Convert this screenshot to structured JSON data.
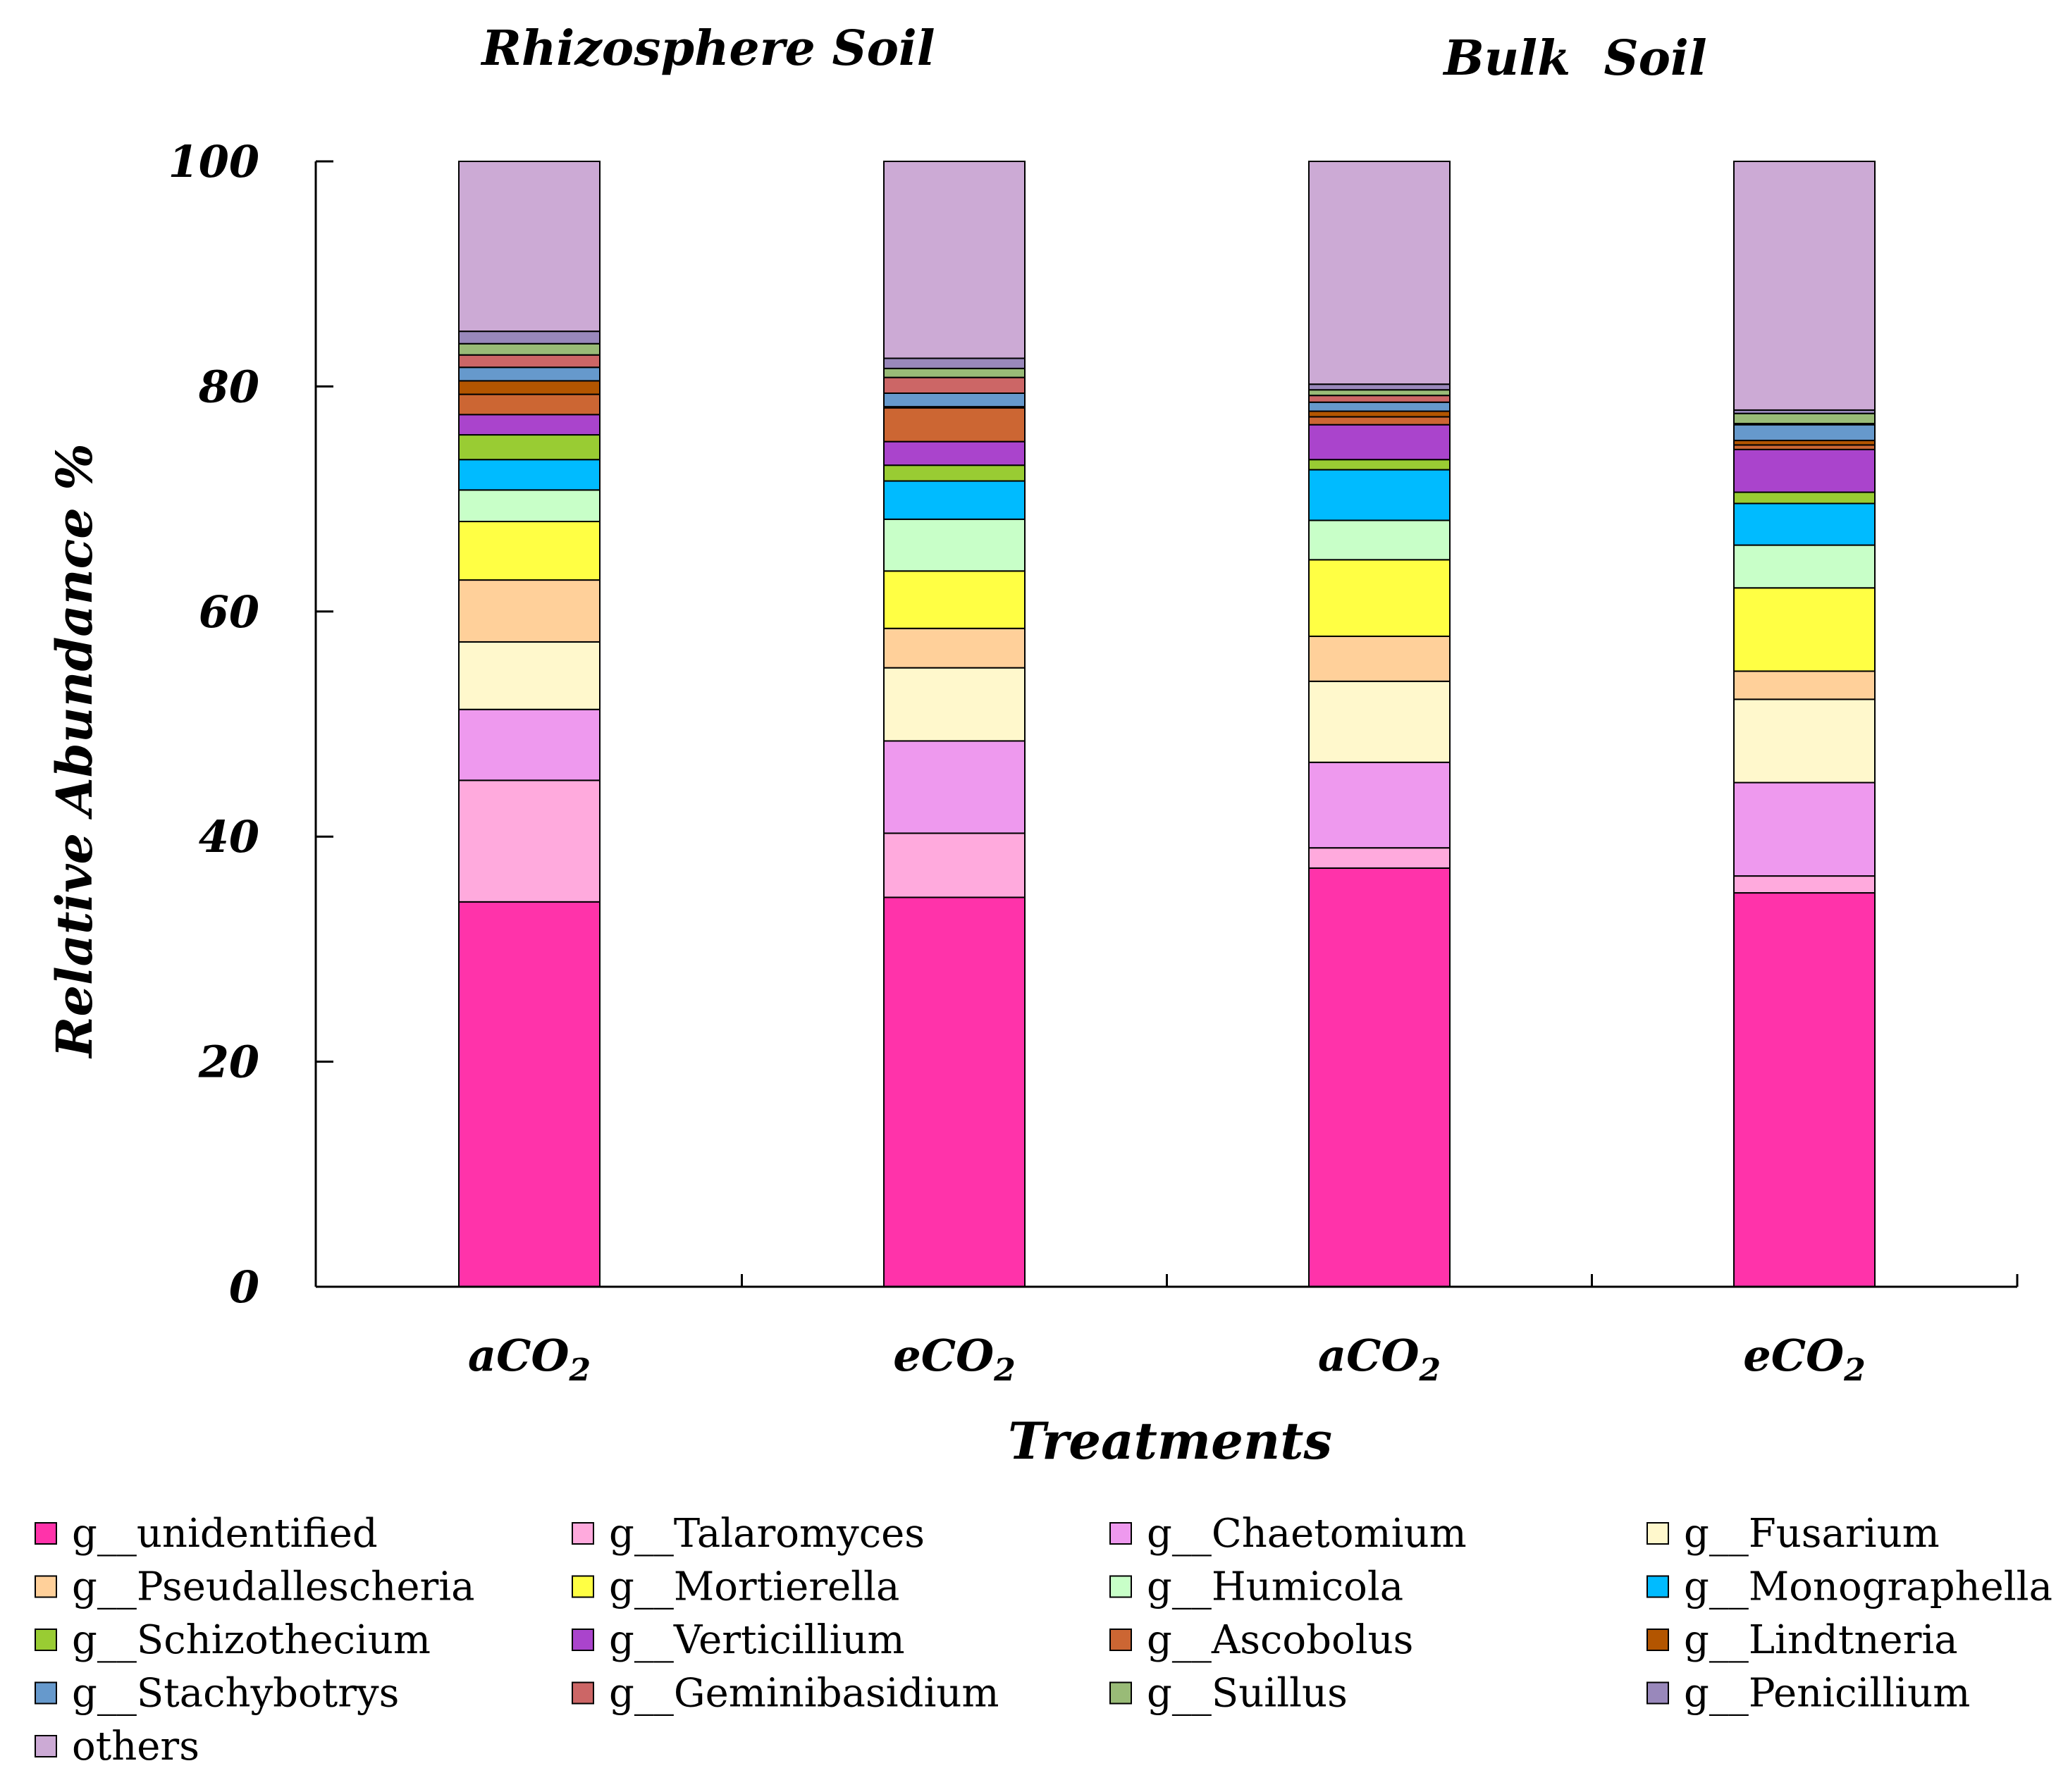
{
  "chart_data": {
    "type": "bar",
    "stacked": true,
    "group_titles": [
      "Rhizosphere Soil",
      "Bulk  Soil"
    ],
    "categories": [
      {
        "main": "aCO",
        "sub": "2"
      },
      {
        "main": "eCO",
        "sub": "2"
      },
      {
        "main": "aCO",
        "sub": "2"
      },
      {
        "main": "eCO",
        "sub": "2"
      }
    ],
    "xlabel": "Treatments",
    "ylabel": "Relative Abundance %",
    "ylim": [
      0,
      100
    ],
    "yticks": [
      "0",
      "20",
      "40",
      "60",
      "80",
      "100"
    ],
    "series": [
      {
        "name": "g__unidentified",
        "color": "#ff33aa",
        "values": [
          34.2,
          34.6,
          37.2,
          35.0
        ]
      },
      {
        "name": "g__Talaromyces",
        "color": "#ffaadd",
        "values": [
          10.8,
          5.7,
          1.8,
          1.5
        ]
      },
      {
        "name": "g__Chaetomium",
        "color": "#ee99ee",
        "values": [
          6.3,
          8.2,
          7.6,
          8.3
        ]
      },
      {
        "name": "g__Fusarium",
        "color": "#fff8cc",
        "values": [
          6.0,
          6.5,
          7.2,
          7.4
        ]
      },
      {
        "name": "g__Pseudallescheria",
        "color": "#ffd09a",
        "values": [
          5.5,
          3.5,
          4.0,
          2.5
        ]
      },
      {
        "name": "g__Mortierella",
        "color": "#ffff44",
        "values": [
          5.2,
          5.1,
          6.8,
          7.4
        ]
      },
      {
        "name": "g__Humicola",
        "color": "#c8ffc8",
        "values": [
          2.8,
          4.6,
          3.5,
          3.8
        ]
      },
      {
        "name": "g__Monographella",
        "color": "#00bbff",
        "values": [
          2.7,
          3.4,
          4.5,
          3.7
        ]
      },
      {
        "name": "g__Schizothecium",
        "color": "#99cc33",
        "values": [
          2.2,
          1.4,
          0.9,
          1.0
        ]
      },
      {
        "name": "g__Verticillium",
        "color": "#aa44cc",
        "values": [
          1.8,
          2.1,
          3.1,
          3.8
        ]
      },
      {
        "name": "g__Ascobolus",
        "color": "#cc6633",
        "values": [
          1.8,
          3.0,
          0.7,
          0.4
        ]
      },
      {
        "name": "g__Lindtneria",
        "color": "#b35500",
        "values": [
          1.2,
          0.1,
          0.5,
          0.4
        ]
      },
      {
        "name": "g__Stachybotrys",
        "color": "#6699cc",
        "values": [
          1.2,
          1.2,
          0.8,
          1.4
        ]
      },
      {
        "name": "g__Geminibasidium",
        "color": "#cc6666",
        "values": [
          1.1,
          1.4,
          0.6,
          0.1
        ]
      },
      {
        "name": "g__Suillus",
        "color": "#99bb77",
        "values": [
          1.0,
          0.8,
          0.5,
          0.9
        ]
      },
      {
        "name": "g__Penicillium",
        "color": "#9988bb",
        "values": [
          1.1,
          0.9,
          0.5,
          0.3
        ]
      },
      {
        "name": "others",
        "color": "#ccaad5",
        "values": [
          15.1,
          17.5,
          19.8,
          22.1
        ]
      }
    ]
  }
}
